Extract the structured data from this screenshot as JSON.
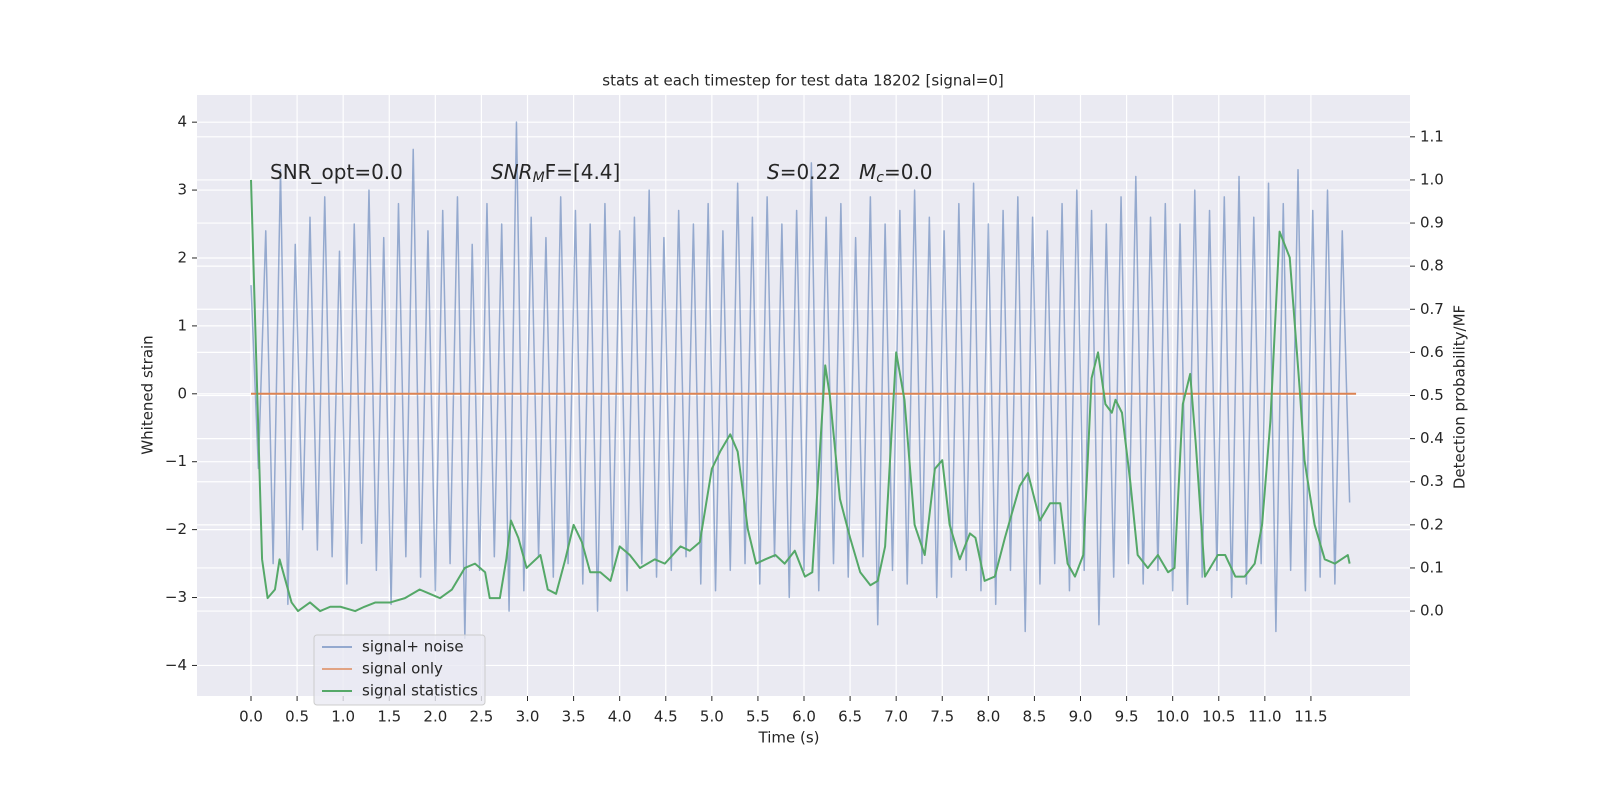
{
  "chart_data": {
    "type": "line",
    "title": "stats at each timestep for test data 18202 [signal=0]",
    "xlabel": "Time (s)",
    "ylabel": "Whitened strain",
    "y2label": "Detection probability/MF",
    "annotations": [
      {
        "rest": "SNR_opt=0.0"
      },
      {
        "main": "SNR",
        "sub": "M",
        "rest": "F=[4.4]"
      },
      {
        "main": "S",
        "rest": "=0.22"
      },
      {
        "main": "M",
        "sub": "c",
        "rest": "=0.0"
      }
    ],
    "grid": true,
    "legend_loc": "lower left",
    "xlim": [
      -0.586,
      12.575
    ],
    "ylim": [
      -4.45,
      4.4
    ],
    "y2lim": [
      -0.197,
      1.197
    ],
    "xticks": [
      {
        "value": 0,
        "label": "0.0"
      },
      0.5,
      {
        "value": 1,
        "label": "1.0"
      },
      1.5,
      {
        "value": 2,
        "label": "2.0"
      },
      2.5,
      {
        "value": 3,
        "label": "3.0"
      },
      3.5,
      {
        "value": 4,
        "label": "4.0"
      },
      4.5,
      {
        "value": 5,
        "label": "5.0"
      },
      5.5,
      {
        "value": 6,
        "label": "6.0"
      },
      6.5,
      {
        "value": 7,
        "label": "7.0"
      },
      7.5,
      {
        "value": 8,
        "label": "8.0"
      },
      8.5,
      {
        "value": 9,
        "label": "9.0"
      },
      9.5,
      {
        "value": 10,
        "label": "10.0"
      },
      10.5,
      {
        "value": 11,
        "label": "11.0"
      },
      11.5
    ],
    "yticks": [
      {
        "value": -4,
        "label": "−4"
      },
      {
        "value": -3,
        "label": "−3"
      },
      {
        "value": -2,
        "label": "−2"
      },
      {
        "value": -1,
        "label": "−1"
      },
      0,
      1,
      2,
      3,
      4
    ],
    "y2ticks": [
      {
        "value": 0,
        "label": "0.0"
      },
      0.1,
      0.2,
      0.3,
      0.4,
      0.5,
      0.6,
      0.7,
      0.8,
      0.9,
      {
        "value": 1,
        "label": "1.0"
      },
      1.1
    ],
    "series": [
      {
        "name": "signal+ noise",
        "color": "#4c72b0",
        "x": [
          0,
          0.08,
          0.16,
          0.24,
          0.32,
          0.4,
          0.48,
          0.56,
          0.64,
          0.72,
          0.8,
          0.88,
          0.96,
          1.04,
          1.12,
          1.2,
          1.28,
          1.36,
          1.44,
          1.52,
          1.6,
          1.68,
          1.76,
          1.84,
          1.92,
          2,
          2.08,
          2.16,
          2.24,
          2.32,
          2.4,
          2.48,
          2.56,
          2.64,
          2.72,
          2.8,
          2.88,
          2.96,
          3.04,
          3.12,
          3.2,
          3.28,
          3.36,
          3.44,
          3.52,
          3.6,
          3.68,
          3.76,
          3.84,
          3.92,
          4,
          4.08,
          4.16,
          4.24,
          4.32,
          4.4,
          4.48,
          4.56,
          4.64,
          4.72,
          4.8,
          4.88,
          4.96,
          5.04,
          5.12,
          5.2,
          5.28,
          5.36,
          5.44,
          5.52,
          5.6,
          5.68,
          5.76,
          5.84,
          5.92,
          6,
          6.08,
          6.16,
          6.24,
          6.32,
          6.4,
          6.48,
          6.56,
          6.64,
          6.72,
          6.8,
          6.88,
          6.96,
          7.04,
          7.12,
          7.2,
          7.28,
          7.36,
          7.44,
          7.52,
          7.6,
          7.68,
          7.76,
          7.84,
          7.92,
          8,
          8.08,
          8.16,
          8.24,
          8.32,
          8.4,
          8.48,
          8.56,
          8.64,
          8.72,
          8.8,
          8.88,
          8.96,
          9.04,
          9.12,
          9.2,
          9.28,
          9.36,
          9.44,
          9.52,
          9.6,
          9.68,
          9.76,
          9.84,
          9.92,
          10,
          10.08,
          10.16,
          10.24,
          10.32,
          10.4,
          10.48,
          10.56,
          10.64,
          10.72,
          10.8,
          10.88,
          10.96,
          11.04,
          11.12,
          11.2,
          11.28,
          11.36,
          11.44,
          11.52,
          11.6,
          11.68,
          11.76,
          11.84,
          11.92
        ],
        "values": [
          1.6,
          -1.1,
          2.4,
          -2.5,
          3.3,
          -3.1,
          2.2,
          -2.0,
          2.6,
          -2.3,
          2.9,
          -2.4,
          2.1,
          -2.8,
          2.5,
          -2.2,
          3.0,
          -2.6,
          2.3,
          -3.1,
          2.8,
          -2.4,
          3.6,
          -2.7,
          2.4,
          -2.9,
          2.7,
          -2.5,
          2.9,
          -3.6,
          2.2,
          -2.6,
          2.8,
          -2.4,
          2.5,
          -3.2,
          4.0,
          -2.9,
          2.6,
          -2.4,
          2.3,
          -2.7,
          2.9,
          -2.5,
          2.7,
          -2.8,
          2.5,
          -3.2,
          2.8,
          -2.6,
          2.4,
          -2.9,
          2.6,
          -2.5,
          3.0,
          -2.7,
          2.3,
          -2.6,
          2.7,
          -2.4,
          2.5,
          -2.8,
          2.8,
          -2.9,
          2.4,
          -2.6,
          3.1,
          -2.5,
          2.6,
          -2.8,
          2.9,
          -2.4,
          2.5,
          -3.0,
          2.7,
          -2.6,
          3.4,
          -2.9,
          2.6,
          -2.5,
          2.8,
          -2.7,
          2.3,
          -2.4,
          2.9,
          -3.4,
          2.5,
          -2.6,
          2.7,
          -2.8,
          3.0,
          -2.5,
          2.6,
          -3.0,
          2.4,
          -2.7,
          2.8,
          -2.6,
          3.1,
          -2.9,
          2.5,
          -3.1,
          2.7,
          -2.6,
          2.9,
          -3.5,
          2.6,
          -2.8,
          2.4,
          -2.5,
          2.8,
          -2.9,
          3.0,
          -2.6,
          2.7,
          -3.4,
          2.5,
          -2.7,
          2.9,
          -2.5,
          3.2,
          -2.8,
          2.6,
          -2.6,
          2.8,
          -2.9,
          2.5,
          -3.1,
          3.0,
          -2.7,
          2.7,
          -2.6,
          2.9,
          -3.0,
          3.2,
          -2.8,
          2.6,
          -2.5,
          3.1,
          -3.5,
          2.8,
          -2.6,
          3.3,
          -2.9,
          2.7,
          -2.7,
          3.0,
          -2.8,
          2.4,
          -1.6
        ]
      },
      {
        "name": "signal only",
        "color": "#dd8452",
        "x": [
          0,
          11.99
        ],
        "values": [
          0,
          0
        ]
      },
      {
        "name": "signal statistics",
        "color": "#55a868",
        "axis": "y2",
        "x": [
          0,
          0.12,
          0.18,
          0.26,
          0.31,
          0.44,
          0.51,
          0.64,
          0.75,
          0.86,
          0.97,
          1.13,
          1.23,
          1.35,
          1.51,
          1.67,
          1.83,
          1.94,
          2.05,
          2.18,
          2.32,
          2.43,
          2.54,
          2.59,
          2.7,
          2.77,
          2.82,
          2.9,
          2.99,
          3.14,
          3.22,
          3.31,
          3.41,
          3.5,
          3.59,
          3.68,
          3.79,
          3.9,
          4,
          4.11,
          4.22,
          4.38,
          4.49,
          4.66,
          4.76,
          4.87,
          5,
          5.09,
          5.2,
          5.28,
          5.39,
          5.48,
          5.58,
          5.69,
          5.79,
          5.9,
          6.01,
          6.09,
          6.14,
          6.23,
          6.28,
          6.39,
          6.5,
          6.61,
          6.72,
          6.8,
          6.88,
          7,
          7.09,
          7.2,
          7.31,
          7.42,
          7.5,
          7.58,
          7.69,
          7.8,
          7.86,
          7.96,
          8.07,
          8.18,
          8.34,
          8.43,
          8.56,
          8.67,
          8.78,
          8.86,
          8.94,
          9.03,
          9.12,
          9.19,
          9.27,
          9.34,
          9.38,
          9.45,
          9.54,
          9.62,
          9.73,
          9.84,
          9.95,
          10.02,
          10.11,
          10.19,
          10.25,
          10.35,
          10.49,
          10.57,
          10.68,
          10.78,
          10.89,
          10.97,
          11.06,
          11.16,
          11.27,
          11.38,
          11.43,
          11.54,
          11.65,
          11.76,
          11.9,
          11.92
        ],
        "values": [
          1.0,
          0.12,
          0.03,
          0.05,
          0.12,
          0.02,
          0.0,
          0.02,
          0.0,
          0.01,
          0.01,
          0.0,
          0.01,
          0.02,
          0.02,
          0.03,
          0.05,
          0.04,
          0.03,
          0.05,
          0.1,
          0.11,
          0.09,
          0.03,
          0.03,
          0.12,
          0.21,
          0.17,
          0.1,
          0.13,
          0.05,
          0.04,
          0.12,
          0.2,
          0.16,
          0.09,
          0.09,
          0.07,
          0.15,
          0.13,
          0.1,
          0.12,
          0.11,
          0.15,
          0.14,
          0.16,
          0.33,
          0.37,
          0.41,
          0.37,
          0.19,
          0.11,
          0.12,
          0.13,
          0.11,
          0.14,
          0.08,
          0.09,
          0.26,
          0.57,
          0.5,
          0.26,
          0.17,
          0.09,
          0.06,
          0.07,
          0.15,
          0.6,
          0.49,
          0.2,
          0.13,
          0.33,
          0.35,
          0.2,
          0.12,
          0.18,
          0.17,
          0.07,
          0.08,
          0.17,
          0.29,
          0.32,
          0.21,
          0.25,
          0.25,
          0.11,
          0.08,
          0.13,
          0.54,
          0.6,
          0.48,
          0.46,
          0.49,
          0.46,
          0.3,
          0.13,
          0.1,
          0.13,
          0.09,
          0.1,
          0.48,
          0.55,
          0.39,
          0.08,
          0.13,
          0.13,
          0.08,
          0.08,
          0.11,
          0.2,
          0.44,
          0.88,
          0.82,
          0.51,
          0.35,
          0.2,
          0.12,
          0.11,
          0.13,
          0.11
        ]
      }
    ]
  }
}
